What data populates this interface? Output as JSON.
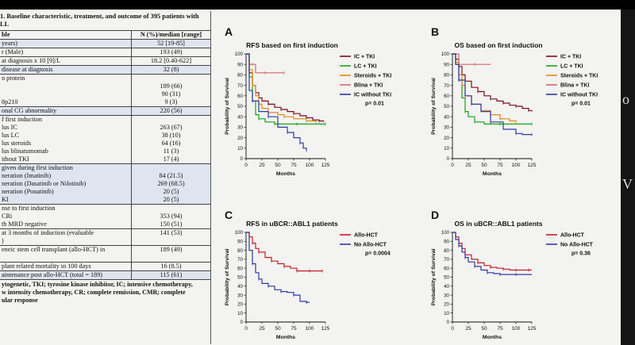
{
  "table": {
    "caption_lines": [
      "1. Baseline characteristic, treatment, and outcome of 395 patients with",
      "LL"
    ],
    "header": [
      "ble",
      "N (%)/median [range]"
    ],
    "rows": [
      {
        "shade": true,
        "cells": [
          [
            "years)"
          ],
          [
            "52 [19-85]"
          ]
        ]
      },
      {
        "shade": false,
        "cells": [
          [
            "r (Male)"
          ],
          [
            "193 (49)"
          ]
        ]
      },
      {
        "shade": false,
        "cells": [
          [
            "at diagnosis x 10 [9]/L"
          ],
          [
            "18.2 [0.40-622]"
          ]
        ]
      },
      {
        "shade": true,
        "cells": [
          [
            "disease at diagnosis"
          ],
          [
            "32 (8)"
          ]
        ]
      },
      {
        "shade": false,
        "cells": [
          [
            "n protein",
            "",
            "",
            "8p210"
          ],
          [
            "",
            "189 (66)",
            "90 (31)",
            "9 (3)"
          ]
        ]
      },
      {
        "shade": true,
        "cells": [
          [
            "onal CG abnormality"
          ],
          [
            "220 (56)"
          ]
        ]
      },
      {
        "shade": false,
        "cells": [
          [
            "f first induction",
            "lus IC",
            "lus LC",
            "lus steroids",
            "lus blinatumomab",
            "ithout TKI"
          ],
          [
            "",
            "263 (67)",
            "38 (10)",
            "64 (16)",
            "11 (3)",
            "17 (4)"
          ]
        ]
      },
      {
        "shade": true,
        "cells": [
          [
            "given during first induction",
            "neration (Imatinib)",
            "neration (Dasatinib or Nilotinib)",
            "neration (Ponatinib)",
            "KI"
          ],
          [
            "",
            "84 (21.5)",
            "269 (68.5)",
            "20 (5)",
            "20 (5)"
          ]
        ]
      },
      {
        "shade": false,
        "cells": [
          [
            "nse to first induction",
            "CRi",
            "th MRD negative"
          ],
          [
            "",
            "353 (94)",
            "150 (51)"
          ]
        ]
      },
      {
        "shade": false,
        "cells": [
          [
            "at 3 months of induction (evaluable",
            ")"
          ],
          [
            "141 (53)",
            ""
          ]
        ]
      },
      {
        "shade": false,
        "cells": [
          [
            "eneic stem cell transplant (allo-HCT) in",
            ""
          ],
          [
            "189 (49)",
            ""
          ]
        ]
      },
      {
        "shade": false,
        "cells": [
          [
            "plant related mortality in 100 days"
          ],
          [
            "16 (8.5)"
          ]
        ]
      },
      {
        "shade": true,
        "cells": [
          [
            "aintenance post allo-HCT (total = 189)"
          ],
          [
            "115 (61)"
          ]
        ]
      }
    ],
    "footnote_lines": [
      "ytogenetic, TKI; tyrosine kinase inhibitor, IC; intensive chemotherapy,",
      "w intensity chemotherapy, CR; complete remission, CMR; complete",
      "ular response"
    ]
  },
  "side_glyphs": [
    "o",
    "V"
  ],
  "chart_data": [
    {
      "panel": "A",
      "type": "line",
      "title": "RFS based on first induction",
      "xlabel": "Months",
      "ylabel": "Probability of Survival",
      "xlim": [
        0,
        125
      ],
      "ylim": [
        0,
        100
      ],
      "xticks": [
        "0",
        "25",
        "50",
        "75",
        "100",
        "125"
      ],
      "yticks": [
        "0",
        "10",
        "20",
        "30",
        "40",
        "50",
        "60",
        "70",
        "80",
        "90",
        "100"
      ],
      "pvalue": "p= 0.01",
      "series": [
        {
          "name": "IC + TKI",
          "color": "#7a1020",
          "x": [
            0,
            5,
            10,
            15,
            20,
            25,
            35,
            45,
            55,
            65,
            75,
            85,
            95,
            105,
            115,
            122
          ],
          "y": [
            100,
            82,
            70,
            63,
            58,
            55,
            52,
            49,
            47,
            45,
            43,
            41,
            39,
            37,
            36,
            35
          ]
        },
        {
          "name": "LC + TKI",
          "color": "#1aa31a",
          "x": [
            0,
            5,
            10,
            15,
            20,
            30,
            45,
            60,
            80,
            100,
            125
          ],
          "y": [
            100,
            78,
            55,
            42,
            38,
            35,
            33,
            33,
            33,
            33,
            33
          ]
        },
        {
          "name": "Steroids + TKI",
          "color": "#e08a1a",
          "x": [
            0,
            5,
            10,
            15,
            20,
            25,
            35,
            50,
            60,
            75,
            95,
            110
          ],
          "y": [
            100,
            85,
            70,
            60,
            52,
            48,
            44,
            42,
            40,
            38,
            36,
            34
          ]
        },
        {
          "name": "Blina + TKI",
          "color": "#d06a6a",
          "x": [
            0,
            5,
            10,
            15,
            30,
            45,
            60
          ],
          "y": [
            100,
            90,
            90,
            82,
            82,
            82,
            82
          ]
        },
        {
          "name": "IC without TKI",
          "color": "#2f3c9e",
          "x": [
            0,
            5,
            10,
            20,
            35,
            50,
            65,
            75,
            85,
            90,
            95
          ],
          "y": [
            100,
            65,
            55,
            45,
            40,
            30,
            25,
            20,
            15,
            10,
            8
          ]
        }
      ]
    },
    {
      "panel": "B",
      "type": "line",
      "title": "OS based on first induction",
      "xlabel": "Months",
      "ylabel": "Probability of Survival",
      "xlim": [
        0,
        125
      ],
      "ylim": [
        0,
        100
      ],
      "xticks": [
        "0",
        "25",
        "50",
        "75",
        "100",
        "125"
      ],
      "yticks": [
        "0",
        "10",
        "20",
        "30",
        "40",
        "50",
        "60",
        "70",
        "80",
        "90",
        "100"
      ],
      "pvalue": "p= 0.01",
      "series": [
        {
          "name": "IC + TKI",
          "color": "#7a1020",
          "x": [
            0,
            5,
            10,
            15,
            20,
            30,
            40,
            50,
            60,
            70,
            80,
            90,
            100,
            110,
            120,
            125
          ],
          "y": [
            100,
            95,
            88,
            80,
            74,
            68,
            64,
            60,
            57,
            55,
            53,
            51,
            50,
            48,
            46,
            45
          ]
        },
        {
          "name": "LC + TKI",
          "color": "#1aa31a",
          "x": [
            0,
            5,
            10,
            15,
            20,
            25,
            35,
            50,
            75,
            100,
            125
          ],
          "y": [
            100,
            90,
            75,
            58,
            45,
            40,
            35,
            33,
            33,
            33,
            33
          ]
        },
        {
          "name": "Steroids + TKI",
          "color": "#e08a1a",
          "x": [
            0,
            5,
            10,
            15,
            20,
            30,
            45,
            60,
            75,
            90,
            100
          ],
          "y": [
            100,
            92,
            80,
            70,
            60,
            52,
            46,
            42,
            38,
            36,
            35
          ]
        },
        {
          "name": "Blina + TKI",
          "color": "#d06a6a",
          "x": [
            0,
            5,
            10,
            15,
            35,
            60
          ],
          "y": [
            100,
            100,
            90,
            90,
            90,
            90
          ]
        },
        {
          "name": "IC without TKI",
          "color": "#2f3c9e",
          "x": [
            0,
            5,
            10,
            20,
            30,
            45,
            60,
            80,
            100,
            110,
            125
          ],
          "y": [
            100,
            90,
            75,
            60,
            52,
            45,
            35,
            28,
            24,
            23,
            23
          ]
        }
      ]
    },
    {
      "panel": "C",
      "type": "line",
      "title": "RFS in uBCR::ABL1 patients",
      "xlabel": "Months",
      "ylabel": "Probability of Survival",
      "xlim": [
        0,
        125
      ],
      "ylim": [
        0,
        100
      ],
      "xticks": [
        "0",
        "25",
        "50",
        "75",
        "100",
        "125"
      ],
      "yticks": [
        "0",
        "10",
        "20",
        "30",
        "40",
        "50",
        "60",
        "70",
        "80",
        "90",
        "100"
      ],
      "pvalue": "p= 0.0004",
      "series": [
        {
          "name": "Allo-HCT",
          "color": "#c21f2a",
          "x": [
            0,
            5,
            10,
            15,
            20,
            30,
            40,
            50,
            60,
            70,
            80,
            90,
            100,
            110,
            120
          ],
          "y": [
            100,
            95,
            88,
            82,
            78,
            72,
            68,
            65,
            62,
            60,
            57,
            57,
            57,
            57,
            57
          ]
        },
        {
          "name": "No Allo-HCT",
          "color": "#2f3c9e",
          "x": [
            0,
            5,
            10,
            15,
            20,
            25,
            35,
            45,
            55,
            65,
            75,
            85,
            95,
            100
          ],
          "y": [
            100,
            80,
            65,
            55,
            48,
            43,
            40,
            36,
            34,
            33,
            30,
            23,
            22,
            22
          ]
        }
      ]
    },
    {
      "panel": "D",
      "type": "line",
      "title": "OS in uBCR::ABL1 patients",
      "xlabel": "Months",
      "ylabel": "Probability of Survival",
      "xlim": [
        0,
        125
      ],
      "ylim": [
        0,
        100
      ],
      "xticks": [
        "0",
        "25",
        "50",
        "75",
        "100",
        "125"
      ],
      "yticks": [
        "0",
        "10",
        "20",
        "30",
        "40",
        "50",
        "60",
        "70",
        "80",
        "90",
        "100"
      ],
      "pvalue": "p= 0.36",
      "series": [
        {
          "name": "Allo-HCT",
          "color": "#c21f2a",
          "x": [
            0,
            5,
            10,
            15,
            20,
            30,
            40,
            50,
            60,
            70,
            80,
            90,
            100,
            110,
            120,
            125
          ],
          "y": [
            100,
            95,
            88,
            82,
            75,
            70,
            66,
            63,
            61,
            60,
            59,
            58,
            58,
            58,
            58,
            58
          ]
        },
        {
          "name": "No Allo-HCT",
          "color": "#2f3c9e",
          "x": [
            0,
            5,
            10,
            15,
            20,
            25,
            35,
            45,
            55,
            65,
            75,
            85,
            100,
            125
          ],
          "y": [
            100,
            92,
            85,
            78,
            72,
            67,
            62,
            58,
            55,
            54,
            53,
            53,
            53,
            53
          ]
        }
      ]
    }
  ]
}
